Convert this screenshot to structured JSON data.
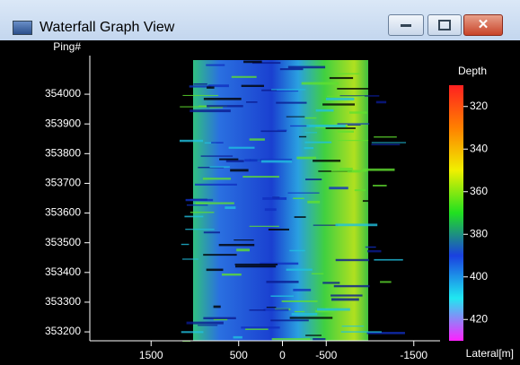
{
  "window": {
    "title": "Waterfall Graph View"
  },
  "chart_data": {
    "type": "waterfall",
    "y_label": "Ping#",
    "x_label": "Lateral[m]",
    "xlim": [
      2200,
      -1800
    ],
    "xticks": [
      1500,
      500,
      0,
      -500,
      -1500
    ],
    "ylim": [
      353170,
      354130
    ],
    "yticks": [
      353200,
      353300,
      353400,
      353500,
      353600,
      353700,
      353800,
      353900,
      354000
    ],
    "colorbar": {
      "label": "Depth",
      "lim": [
        310,
        430
      ],
      "ticks": [
        320,
        340,
        360,
        380,
        400,
        420
      ],
      "colors": [
        "#ff2020",
        "#ff8000",
        "#f0f000",
        "#20e020",
        "#1a40e0",
        "#20e8f0",
        "#ff20ff"
      ]
    }
  }
}
